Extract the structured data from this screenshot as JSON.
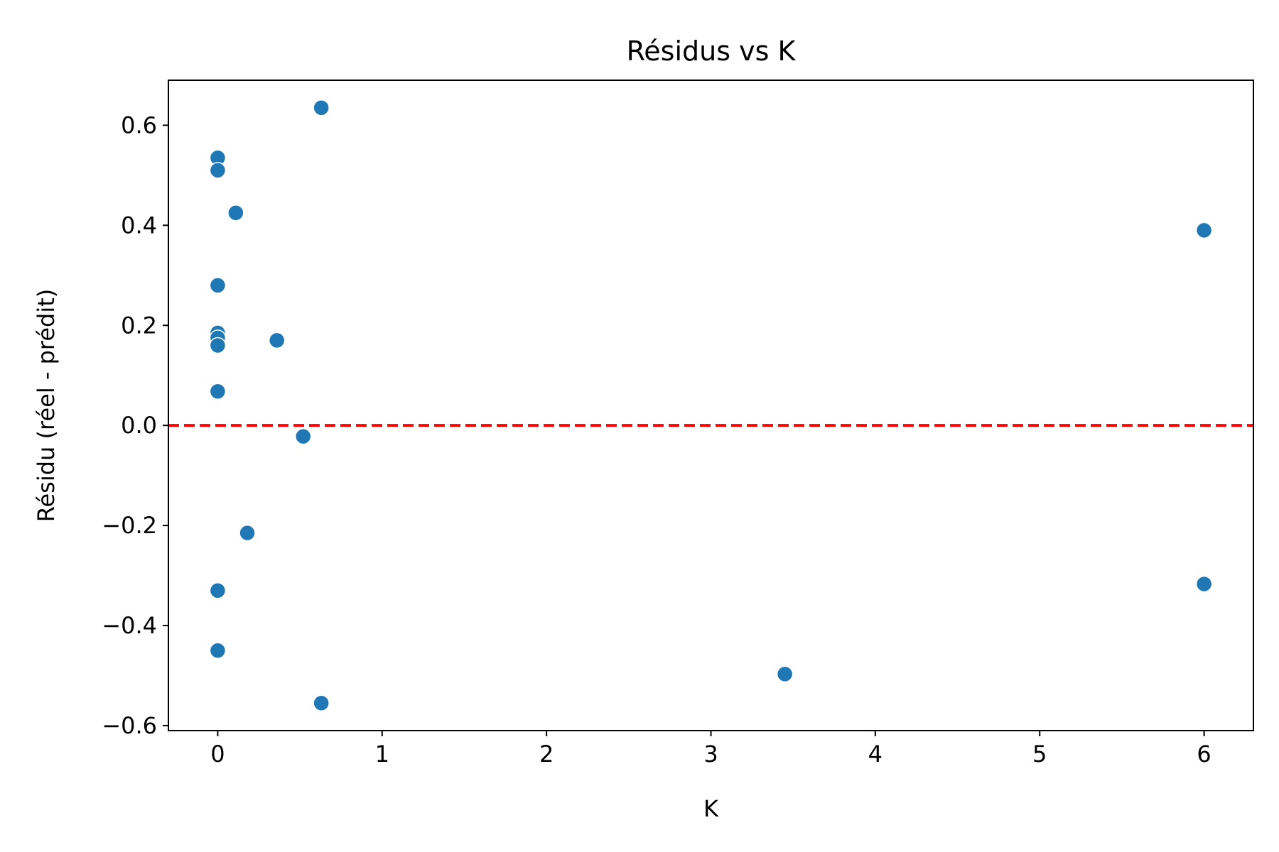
{
  "chart_data": {
    "type": "scatter",
    "title": "Résidus vs K",
    "xlabel": "K",
    "ylabel": "Résidu (réel - prédit)",
    "xlim": [
      -0.3,
      6.3
    ],
    "ylim": [
      -0.61,
      0.69
    ],
    "xticks": [
      0,
      1,
      2,
      3,
      4,
      5,
      6
    ],
    "xtick_labels": [
      "0",
      "1",
      "2",
      "3",
      "4",
      "5",
      "6"
    ],
    "yticks": [
      -0.6,
      -0.4,
      -0.2,
      0.0,
      0.2,
      0.4,
      0.6
    ],
    "ytick_labels": [
      "−0.6",
      "−0.4",
      "−0.2",
      "0.0",
      "0.2",
      "0.4",
      "0.6"
    ],
    "grid": false,
    "reference_line": {
      "y": 0.0,
      "style": "dashed",
      "color": "#ff0000"
    },
    "series": [
      {
        "color": "#1f77b4",
        "points": [
          {
            "x": 0.0,
            "y": 0.535
          },
          {
            "x": 0.0,
            "y": 0.51
          },
          {
            "x": 0.0,
            "y": 0.28
          },
          {
            "x": 0.0,
            "y": 0.185
          },
          {
            "x": 0.0,
            "y": 0.175
          },
          {
            "x": 0.0,
            "y": 0.16
          },
          {
            "x": 0.0,
            "y": 0.068
          },
          {
            "x": 0.0,
            "y": -0.33
          },
          {
            "x": 0.0,
            "y": -0.45
          },
          {
            "x": 0.11,
            "y": 0.425
          },
          {
            "x": 0.18,
            "y": -0.215
          },
          {
            "x": 0.36,
            "y": 0.17
          },
          {
            "x": 0.52,
            "y": -0.022
          },
          {
            "x": 0.63,
            "y": 0.635
          },
          {
            "x": 0.63,
            "y": -0.555
          },
          {
            "x": 3.45,
            "y": -0.497
          },
          {
            "x": 6.0,
            "y": 0.39
          },
          {
            "x": 6.0,
            "y": -0.317
          }
        ]
      }
    ]
  }
}
